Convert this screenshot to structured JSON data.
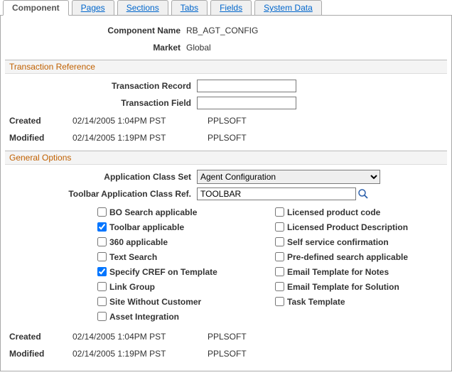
{
  "tabs": [
    "Component",
    "Pages",
    "Sections",
    "Tabs",
    "Fields",
    "System Data"
  ],
  "activeTab": 0,
  "header": {
    "componentName_label": "Component Name",
    "componentName_value": "RB_AGT_CONFIG",
    "market_label": "Market",
    "market_value": "Global"
  },
  "transactionRef": {
    "title": "Transaction Reference",
    "record_label": "Transaction Record",
    "record_value": "",
    "field_label": "Transaction Field",
    "field_value": "",
    "created_label": "Created",
    "created_dt": "02/14/2005  1:04PM PST",
    "created_user": "PPLSOFT",
    "modified_label": "Modified",
    "modified_dt": "02/14/2005  1:19PM PST",
    "modified_user": "PPLSOFT"
  },
  "generalOptions": {
    "title": "General Options",
    "appClassSet_label": "Application Class Set",
    "appClassSet_value": "Agent Configuration",
    "toolbarRef_label": "Toolbar Application Class Ref.",
    "toolbarRef_value": "TOOLBAR",
    "checks_left": [
      {
        "label": "BO Search applicable",
        "checked": false
      },
      {
        "label": "Toolbar applicable",
        "checked": true
      },
      {
        "label": "360 applicable",
        "checked": false
      },
      {
        "label": "Text Search",
        "checked": false
      },
      {
        "label": "Specify CREF on Template",
        "checked": true
      },
      {
        "label": "Link Group",
        "checked": false
      },
      {
        "label": "Site Without Customer",
        "checked": false
      },
      {
        "label": "Asset Integration",
        "checked": false
      }
    ],
    "checks_right": [
      {
        "label": "Licensed product code",
        "checked": false
      },
      {
        "label": "Licensed Product Description",
        "checked": false
      },
      {
        "label": "Self service confirmation",
        "checked": false
      },
      {
        "label": "Pre-defined search applicable",
        "checked": false
      },
      {
        "label": "Email Template for Notes",
        "checked": false
      },
      {
        "label": "Email Template for Solution",
        "checked": false
      },
      {
        "label": "Task Template",
        "checked": false
      }
    ],
    "created_label": "Created",
    "created_dt": "02/14/2005  1:04PM PST",
    "created_user": "PPLSOFT",
    "modified_label": "Modified",
    "modified_dt": "02/14/2005  1:19PM PST",
    "modified_user": "PPLSOFT"
  }
}
